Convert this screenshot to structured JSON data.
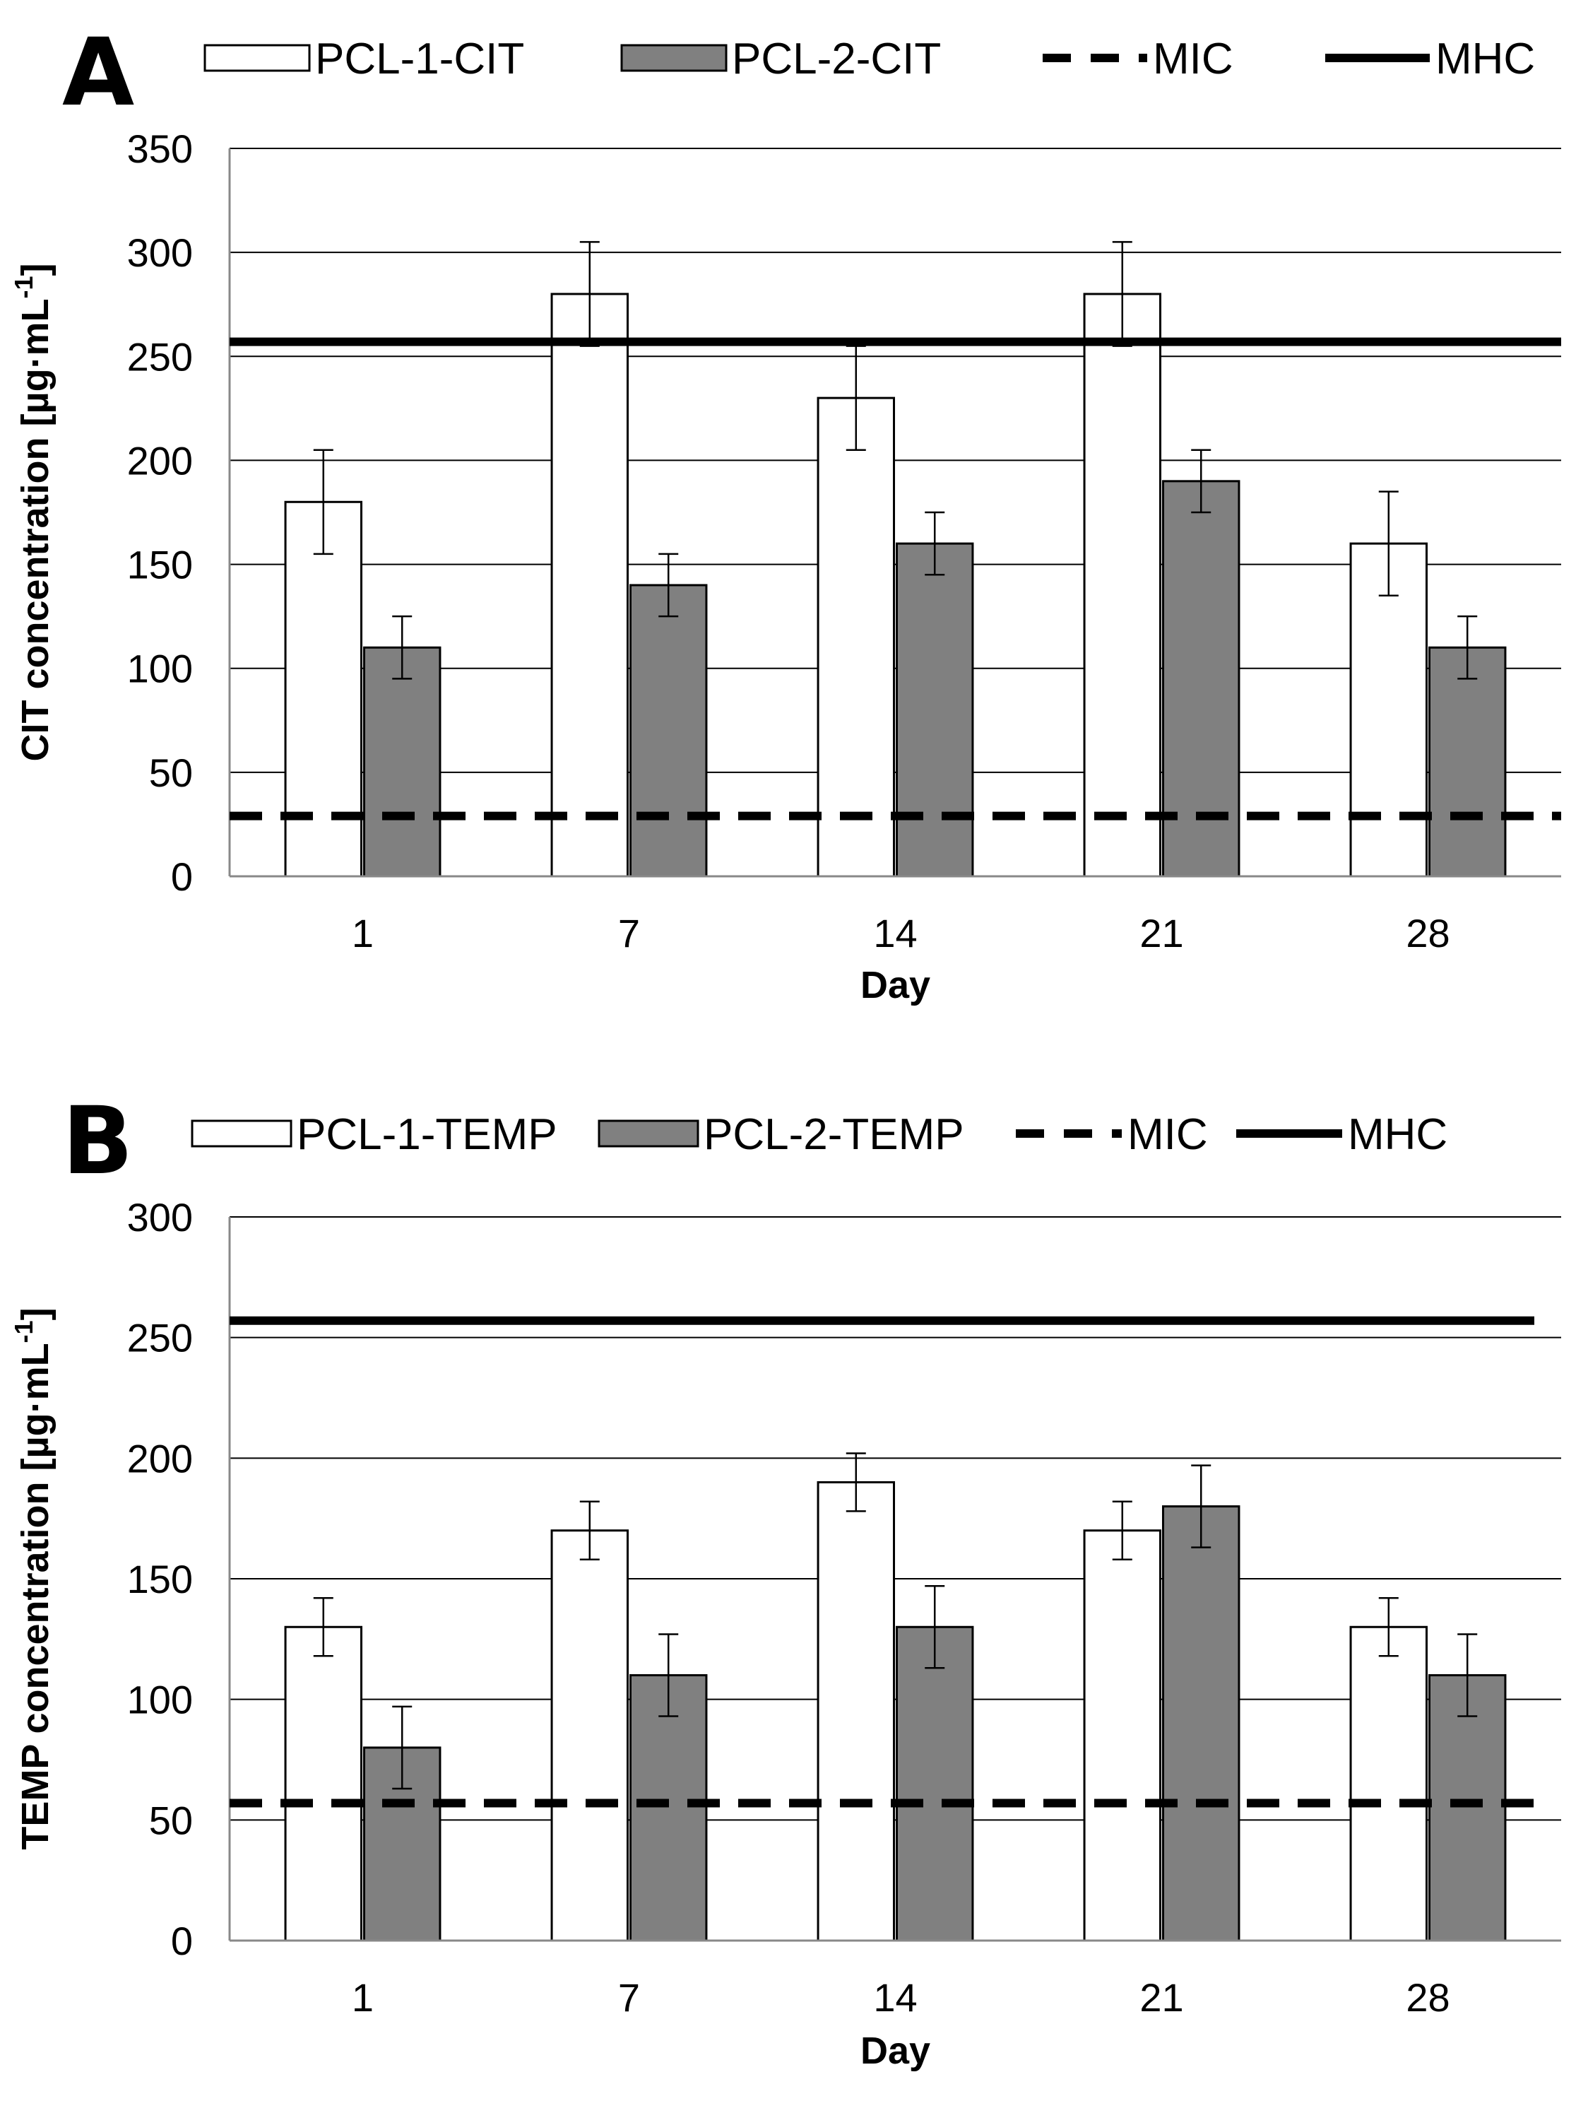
{
  "chart_data": [
    {
      "panel_label": "A",
      "type": "bar",
      "categories": [
        "1",
        "7",
        "14",
        "21",
        "28"
      ],
      "series": [
        {
          "name": "PCL-1-CIT",
          "values": [
            180,
            280,
            230,
            280,
            160
          ],
          "errors": [
            25,
            25,
            25,
            25,
            25
          ],
          "fill": "#ffffff"
        },
        {
          "name": "PCL-2-CIT",
          "values": [
            110,
            140,
            160,
            190,
            110
          ],
          "errors": [
            15,
            15,
            15,
            15,
            15
          ],
          "fill": "#808080"
        }
      ],
      "lines": [
        {
          "name": "MIC",
          "value": 29,
          "style": "dashed"
        },
        {
          "name": "MHC",
          "value": 257,
          "style": "solid"
        }
      ],
      "xlabel": "Day",
      "ylabel_main": "CIT concentration [µg·mL",
      "ylabel_sup": "-1",
      "ylabel_tail": "]",
      "ylim": [
        0,
        350
      ],
      "yticks": [
        0,
        50,
        100,
        150,
        200,
        250,
        300,
        350
      ],
      "grid": true,
      "legend_position": "top"
    },
    {
      "panel_label": "B",
      "type": "bar",
      "categories": [
        "1",
        "7",
        "14",
        "21",
        "28"
      ],
      "series": [
        {
          "name": "PCL-1-TEMP",
          "values": [
            130,
            170,
            190,
            170,
            130
          ],
          "errors": [
            12,
            12,
            12,
            12,
            12
          ],
          "fill": "#ffffff"
        },
        {
          "name": "PCL-2-TEMP",
          "values": [
            80,
            110,
            130,
            180,
            110
          ],
          "errors": [
            17,
            17,
            17,
            17,
            17
          ],
          "fill": "#808080"
        }
      ],
      "lines": [
        {
          "name": "MIC",
          "value": 57,
          "style": "dashed"
        },
        {
          "name": "MHC",
          "value": 257,
          "style": "solid"
        }
      ],
      "xlabel": "Day",
      "ylabel_main": "TEMP concentration [µg·mL",
      "ylabel_sup": "-1",
      "ylabel_tail": "]",
      "ylim": [
        0,
        300
      ],
      "yticks": [
        0,
        50,
        100,
        150,
        200,
        250,
        300
      ],
      "grid": true,
      "legend_position": "top"
    }
  ]
}
